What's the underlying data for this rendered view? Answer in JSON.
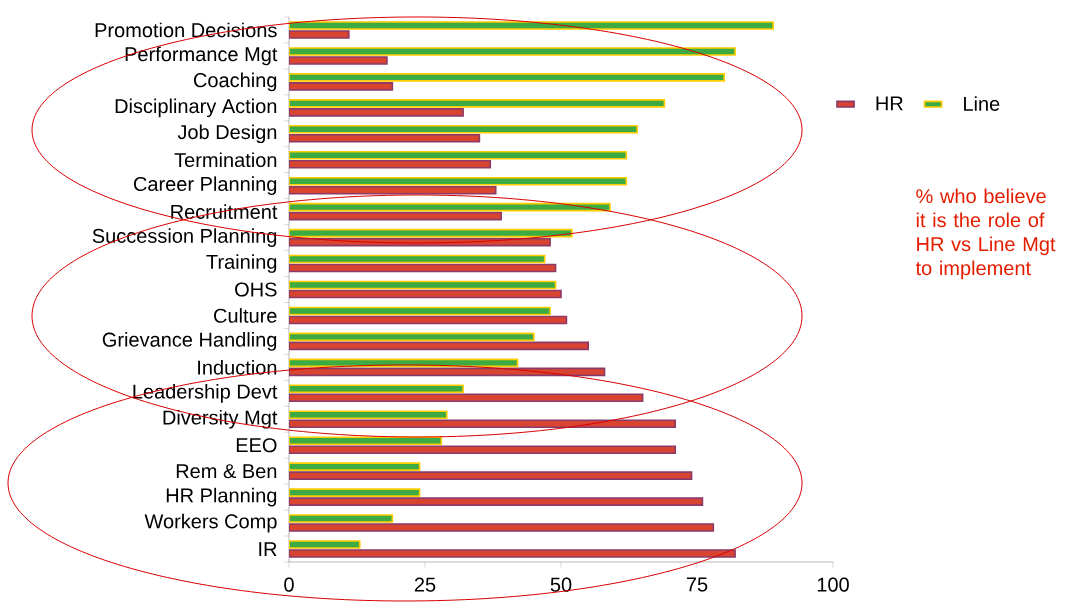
{
  "chart_data": {
    "type": "bar",
    "orientation": "horizontal",
    "categories": [
      "Promotion Decisions",
      "Performance Mgt",
      "Coaching",
      "Disciplinary Action",
      "Job Design",
      "Termination",
      "Career Planning",
      "Recruitment",
      "Succession Planning",
      "Training",
      "OHS",
      "Culture",
      "Grievance Handling",
      "Induction",
      "Leadership Devt",
      "Diversity Mgt",
      "EEO",
      "Rem & Ben",
      "HR Planning",
      "Workers Comp",
      "IR"
    ],
    "series": [
      {
        "name": "HR",
        "color": "#d94430",
        "values": [
          11,
          18,
          19,
          32,
          35,
          37,
          38,
          39,
          48,
          49,
          50,
          51,
          55,
          58,
          65,
          71,
          71,
          74,
          76,
          78,
          82
        ]
      },
      {
        "name": "Line",
        "color": "#3cab44",
        "values": [
          89,
          82,
          80,
          69,
          64,
          62,
          62,
          59,
          52,
          47,
          49,
          48,
          45,
          42,
          32,
          29,
          28,
          24,
          24,
          19,
          13
        ]
      }
    ],
    "xlim": [
      0,
      100
    ],
    "xticks": [
      0,
      25,
      50,
      75,
      100
    ],
    "legend": "right",
    "grid": false,
    "annotations": [
      "% who believe it is the role of HR vs Line Mgt to implement"
    ]
  }
}
